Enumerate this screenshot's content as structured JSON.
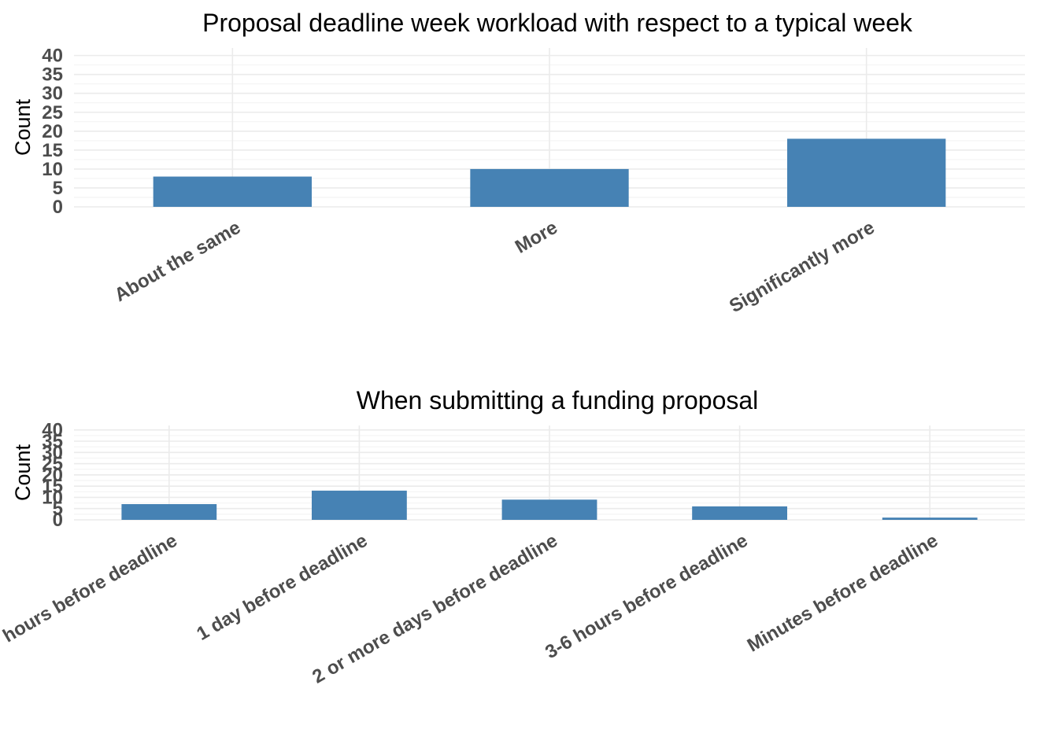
{
  "colors": {
    "bar": "#4682b4",
    "grid": "#ebebeb",
    "tick_text": "#4d4d4d"
  },
  "chart_data": [
    {
      "type": "bar",
      "title": "Proposal deadline week workload with respect to a typical week",
      "xlabel": "",
      "ylabel": "Count",
      "categories": [
        "About the same",
        "More",
        "Significantly more"
      ],
      "values": [
        8,
        10,
        18
      ],
      "ylim": [
        0,
        40
      ],
      "yticks": [
        0,
        5,
        10,
        15,
        20,
        25,
        30,
        35,
        40
      ],
      "grid": true
    },
    {
      "type": "bar",
      "title": "When submitting a funding proposal",
      "xlabel": "",
      "ylabel": "Count",
      "categories": [
        "hours before deadline",
        "1 day before deadline",
        "2 or more days before deadline",
        "3-6 hours before deadline",
        "Minutes before deadline"
      ],
      "values": [
        7,
        13,
        9,
        6,
        1
      ],
      "ylim": [
        0,
        40
      ],
      "yticks": [
        0,
        5,
        10,
        15,
        20,
        25,
        30,
        35,
        40
      ],
      "grid": true
    }
  ]
}
